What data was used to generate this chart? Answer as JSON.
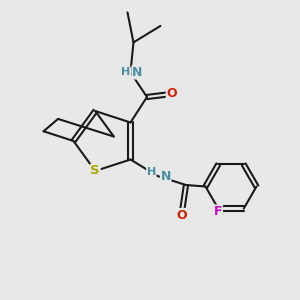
{
  "bg_color": "#e8e8e8",
  "atom_colors": {
    "C": "#000000",
    "N": "#4a8fa8",
    "O": "#cc2200",
    "S": "#aaaa00",
    "F": "#cc00cc",
    "H": "#4a8fa8"
  },
  "bond_color": "#1a1a1a",
  "lw": 1.5,
  "font_size": 9,
  "fig_size": [
    3.0,
    3.0
  ],
  "dpi": 100
}
